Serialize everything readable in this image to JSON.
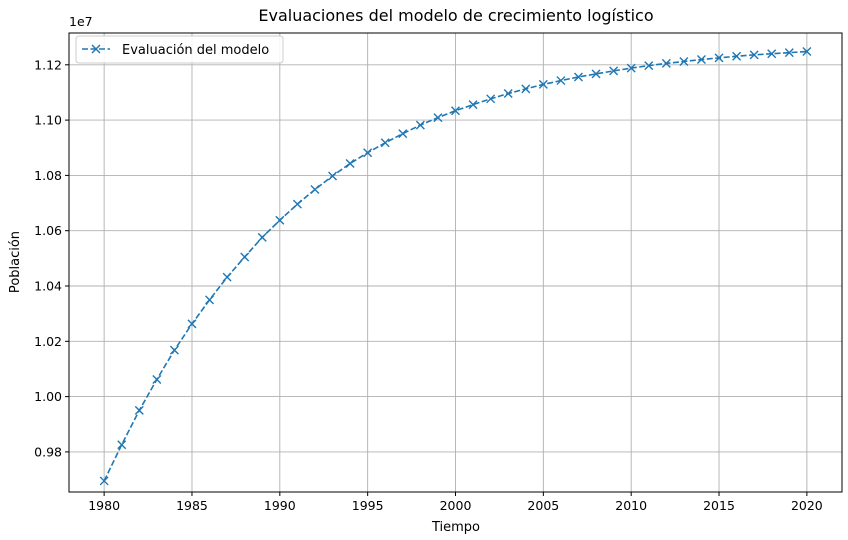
{
  "chart_data": {
    "type": "line",
    "title": "Evaluaciones del modelo de crecimiento logístico",
    "xlabel": "Tiempo",
    "ylabel": "Población",
    "offset_label": "1e7",
    "xlim": [
      1978,
      2022
    ],
    "ylim": [
      0.9655,
      1.1315
    ],
    "grid": true,
    "legend_position": "upper-left",
    "x_ticks": [
      1980,
      1985,
      1990,
      1995,
      2000,
      2005,
      2010,
      2015,
      2020
    ],
    "y_ticks": [
      0.98,
      1.0,
      1.02,
      1.04,
      1.06,
      1.08,
      1.1,
      1.12
    ],
    "y_tick_labels": [
      "0.98",
      "1.00",
      "1.02",
      "1.04",
      "1.06",
      "1.08",
      "1.10",
      "1.12"
    ],
    "series": [
      {
        "name": "Evaluación del modelo",
        "color": "#1f77b4",
        "line_style": "dashed",
        "marker": "x",
        "x": [
          1980,
          1981,
          1982,
          1983,
          1984,
          1985,
          1986,
          1987,
          1988,
          1989,
          1990,
          1991,
          1992,
          1993,
          1994,
          1995,
          1996,
          1997,
          1998,
          1999,
          2000,
          2001,
          2002,
          2003,
          2004,
          2005,
          2006,
          2007,
          2008,
          2009,
          2010,
          2011,
          2012,
          2013,
          2014,
          2015,
          2016,
          2017,
          2018,
          2019,
          2020
        ],
        "y": [
          0.9695,
          0.9826,
          0.995,
          1.0062,
          1.0168,
          1.0263,
          1.035,
          1.0432,
          1.0505,
          1.0576,
          1.0638,
          1.0696,
          1.0749,
          1.0798,
          1.0843,
          1.0882,
          1.0918,
          1.0951,
          1.0982,
          1.1009,
          1.1034,
          1.1056,
          1.1077,
          1.1096,
          1.1113,
          1.1129,
          1.1143,
          1.1156,
          1.1167,
          1.1178,
          1.1188,
          1.1197,
          1.1205,
          1.1212,
          1.1219,
          1.1225,
          1.1231,
          1.1236,
          1.124,
          1.1244,
          1.1248
        ]
      }
    ]
  }
}
